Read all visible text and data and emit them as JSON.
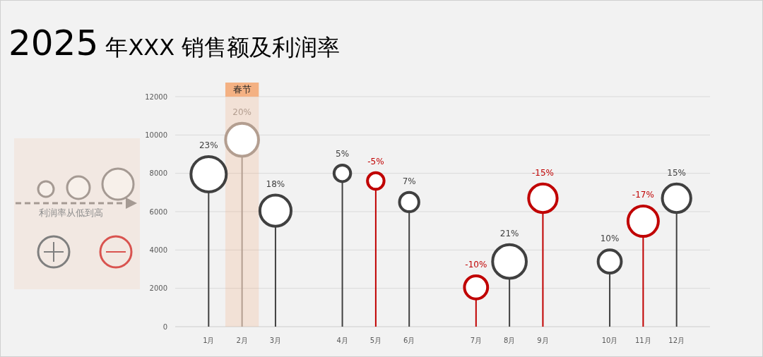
{
  "chart_data": {
    "type": "lollipop",
    "title": "2025 年XXX 销售额及利润率",
    "categories": [
      "1月",
      "2月",
      "3月",
      null,
      "4月",
      "5月",
      "6月",
      null,
      "7月",
      "8月",
      "9月",
      null,
      "10月",
      "11月",
      "12月"
    ],
    "values": [
      7950,
      9750,
      6050,
      null,
      8000,
      7600,
      6500,
      null,
      2050,
      3400,
      6700,
      null,
      3400,
      5500,
      6700
    ],
    "sizes": [
      1,
      0.87,
      0.78,
      null,
      0.22,
      0.22,
      0.3,
      null,
      0.43,
      0.91,
      0.65,
      null,
      0.43,
      0.74,
      0.65
    ],
    "colors": [
      "#404040",
      "#b39e90",
      "#404040",
      null,
      "#404040",
      "#c00000",
      "#404040",
      null,
      "#c00000",
      "#404040",
      "#c00000",
      null,
      "#404040",
      "#c00000",
      "#404040"
    ],
    "ylim": [
      0,
      12000
    ],
    "yticks": [
      0,
      2000,
      4000,
      6000,
      8000,
      10000,
      12000
    ],
    "grid": "y",
    "bands": [
      {
        "axis": "x",
        "from": "2月",
        "to": "2月",
        "label": "春节",
        "color": "#f4b183"
      }
    ],
    "annotations": [
      "利润率从低到高",
      {
        "text": "23%",
        "x": "1月",
        "y": 7950
      },
      {
        "text": "20%",
        "x": "2月",
        "y": 9750
      },
      {
        "text": "18%",
        "x": "3月",
        "y": 6050
      },
      {
        "text": "5%",
        "x": "4月",
        "y": 8000
      },
      {
        "text": "-5%",
        "x": "5月",
        "y": 7600
      },
      {
        "text": "7%",
        "x": "6月",
        "y": 6500
      },
      {
        "text": "-10%",
        "x": "7月",
        "y": 2050
      },
      {
        "text": "21%",
        "x": "8月",
        "y": 3400
      },
      {
        "text": "-15%",
        "x": "9月",
        "y": 6700
      },
      {
        "text": "10%",
        "x": "10月",
        "y": 3400
      },
      {
        "text": "-17%",
        "x": "11月",
        "y": 5500
      },
      {
        "text": "15%",
        "x": "12月",
        "y": 6700
      }
    ]
  }
}
